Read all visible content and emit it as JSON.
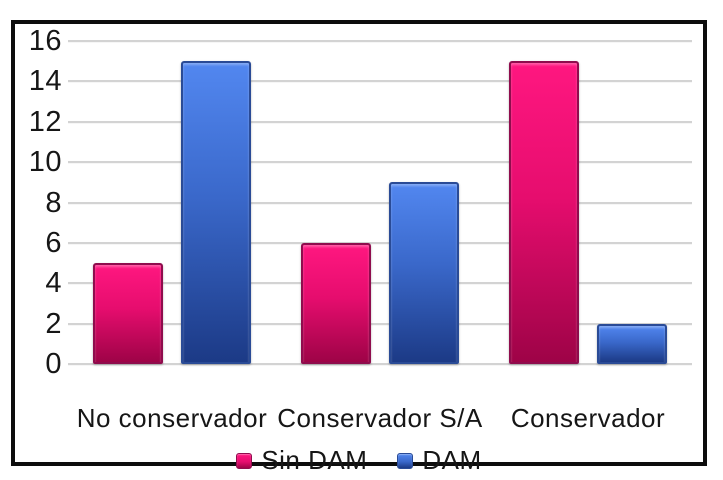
{
  "chart_data": {
    "type": "bar",
    "title": "",
    "xlabel": "",
    "ylabel": "",
    "categories": [
      "No conservador",
      "Conservador S/A",
      "Conservador"
    ],
    "series": [
      {
        "name": "Sin DAM",
        "values": [
          5,
          6,
          15
        ],
        "color_top": "#FF1780",
        "color_mid": "#E60D6E",
        "color_bottom": "#9E0347",
        "border_color": "#8F0C4D"
      },
      {
        "name": "DAM",
        "values": [
          15,
          9,
          2
        ],
        "color_top": "#5287F0",
        "color_mid": "#3A68CA",
        "color_bottom": "#1C3A86",
        "border_color": "#2A4B96"
      }
    ],
    "yticks": [
      0,
      2,
      4,
      6,
      8,
      10,
      12,
      14,
      16
    ],
    "ylim": [
      0,
      16
    ],
    "grid": true,
    "legend_position": "bottom",
    "gridline_color": "#D3D3D3",
    "frame_color": "#0D0D0D",
    "background_color": "#FFFFFF",
    "text_color": "#161616"
  }
}
